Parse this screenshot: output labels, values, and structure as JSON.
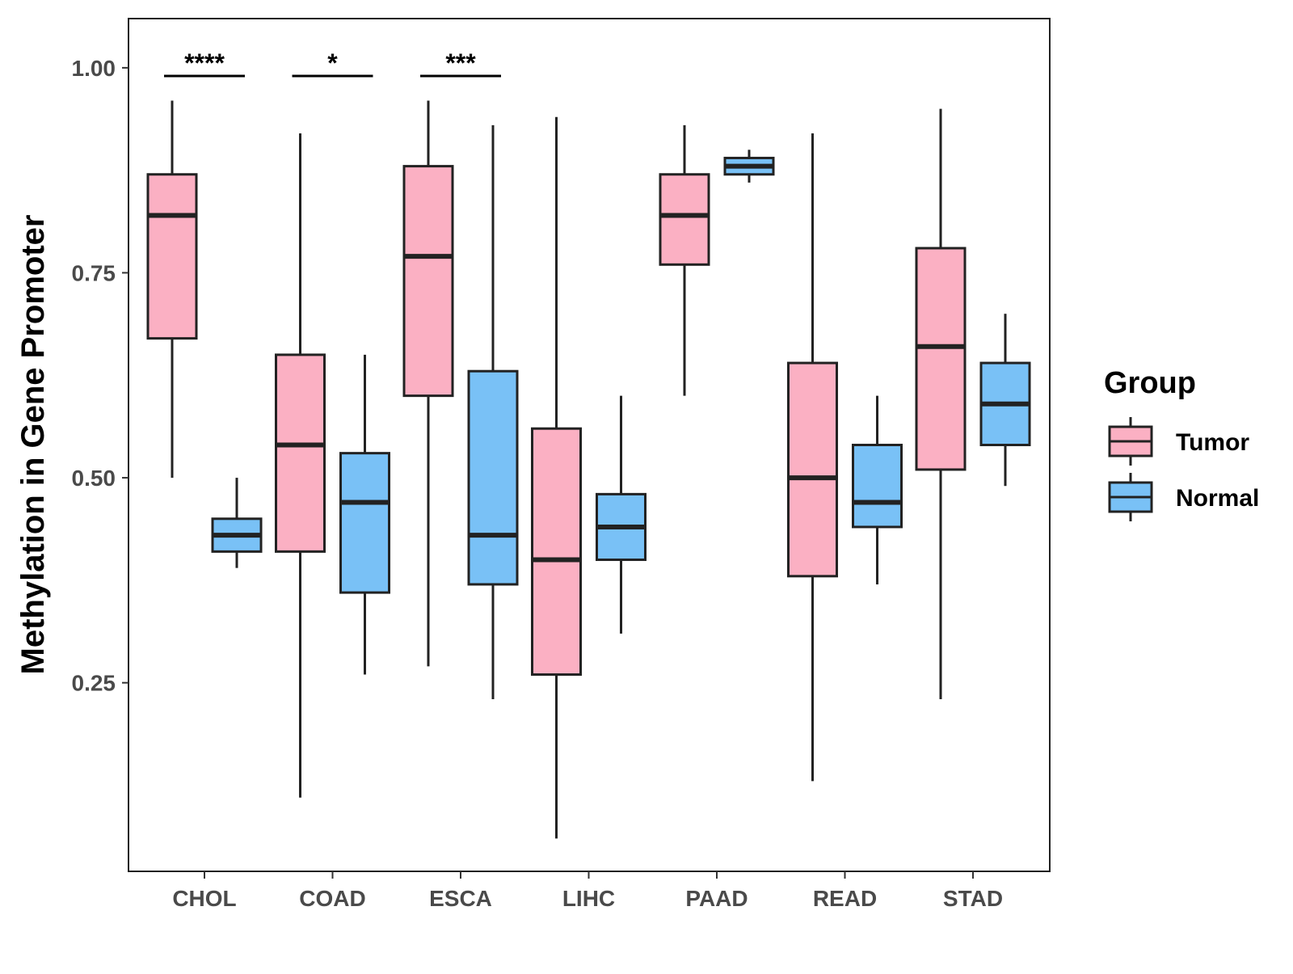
{
  "chart_data": {
    "type": "boxplot",
    "title": "",
    "xlabel": "",
    "ylabel": "Methylation in Gene Promoter",
    "ylim": [
      0.02,
      1.06
    ],
    "yticks": [
      "0.25",
      "0.50",
      "0.75",
      "1.00"
    ],
    "categories": [
      "CHOL",
      "COAD",
      "ESCA",
      "LIHC",
      "PAAD",
      "READ",
      "STAD"
    ],
    "legend": {
      "title": "Group",
      "placement": "right",
      "entries": [
        "Tumor",
        "Normal"
      ]
    },
    "colors": {
      "Tumor": "#fbb0c3",
      "Normal": "#79c1f6",
      "outline": "#222222"
    },
    "series": [
      {
        "name": "Tumor",
        "boxes": [
          {
            "whisker_low": 0.5,
            "q1": 0.67,
            "median": 0.82,
            "q3": 0.87,
            "whisker_high": 0.96
          },
          {
            "whisker_low": 0.11,
            "q1": 0.41,
            "median": 0.54,
            "q3": 0.65,
            "whisker_high": 0.92
          },
          {
            "whisker_low": 0.27,
            "q1": 0.6,
            "median": 0.77,
            "q3": 0.88,
            "whisker_high": 0.96
          },
          {
            "whisker_low": 0.06,
            "q1": 0.26,
            "median": 0.4,
            "q3": 0.56,
            "whisker_high": 0.94
          },
          {
            "whisker_low": 0.6,
            "q1": 0.76,
            "median": 0.82,
            "q3": 0.87,
            "whisker_high": 0.93
          },
          {
            "whisker_low": 0.13,
            "q1": 0.38,
            "median": 0.5,
            "q3": 0.64,
            "whisker_high": 0.92
          },
          {
            "whisker_low": 0.23,
            "q1": 0.51,
            "median": 0.66,
            "q3": 0.78,
            "whisker_high": 0.95
          }
        ]
      },
      {
        "name": "Normal",
        "boxes": [
          {
            "whisker_low": 0.39,
            "q1": 0.41,
            "median": 0.43,
            "q3": 0.45,
            "whisker_high": 0.5
          },
          {
            "whisker_low": 0.26,
            "q1": 0.36,
            "median": 0.47,
            "q3": 0.53,
            "whisker_high": 0.65
          },
          {
            "whisker_low": 0.23,
            "q1": 0.37,
            "median": 0.43,
            "q3": 0.63,
            "whisker_high": 0.93
          },
          {
            "whisker_low": 0.31,
            "q1": 0.4,
            "median": 0.44,
            "q3": 0.48,
            "whisker_high": 0.6
          },
          {
            "whisker_low": 0.86,
            "q1": 0.87,
            "median": 0.88,
            "q3": 0.89,
            "whisker_high": 0.9
          },
          {
            "whisker_low": 0.37,
            "q1": 0.44,
            "median": 0.47,
            "q3": 0.54,
            "whisker_high": 0.6
          },
          {
            "whisker_low": 0.49,
            "q1": 0.54,
            "median": 0.59,
            "q3": 0.64,
            "whisker_high": 0.7
          }
        ]
      }
    ],
    "annotations": [
      {
        "category": "CHOL",
        "label": "****",
        "y": 0.99
      },
      {
        "category": "COAD",
        "label": "*",
        "y": 0.99
      },
      {
        "category": "ESCA",
        "label": "***",
        "y": 0.99
      }
    ]
  }
}
